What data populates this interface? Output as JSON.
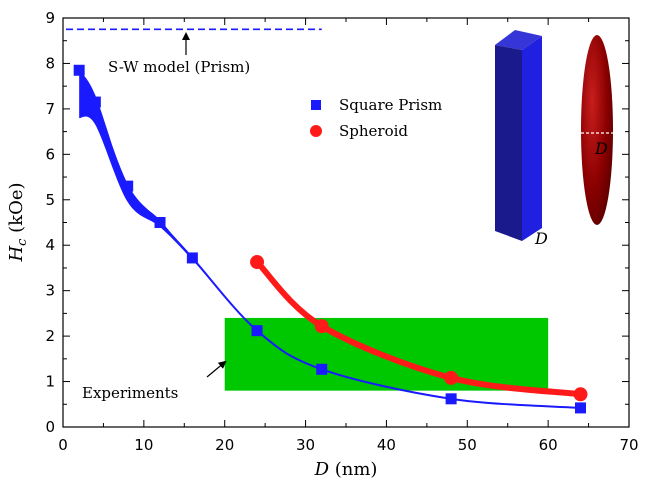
{
  "chart_data": {
    "type": "line",
    "xlabel": {
      "italic": "D",
      "rest": " (nm)"
    },
    "ylabel": {
      "italic": "H",
      "sub": "c",
      "rest": " (kOe)"
    },
    "xlim": [
      0,
      70
    ],
    "ylim": [
      0,
      9
    ],
    "xticks": [
      0,
      10,
      20,
      30,
      40,
      50,
      60,
      70
    ],
    "yticks": [
      0,
      1,
      2,
      3,
      4,
      5,
      6,
      7,
      8,
      9
    ],
    "grid": false,
    "legend": {
      "position": "top-center",
      "entries": [
        {
          "name": "Square Prism",
          "color": "#1a1aff",
          "marker": "square"
        },
        {
          "name": "Spheroid",
          "color": "#ff1a1a",
          "marker": "circle"
        }
      ]
    },
    "series": [
      {
        "name": "Square Prism",
        "color": "#1a1aff",
        "marker": "square",
        "x": [
          2,
          4,
          8,
          12,
          16,
          24,
          32,
          48,
          64
        ],
        "y": [
          7.85,
          7.15,
          5.3,
          4.5,
          3.72,
          2.12,
          1.27,
          0.62,
          0.42
        ],
        "band_upper": [
          7.85,
          7.3,
          5.3,
          4.55,
          3.72,
          2.12,
          1.27,
          0.62,
          0.42
        ],
        "band_lower": [
          6.8,
          6.65,
          4.95,
          4.4,
          3.68,
          2.12,
          1.27,
          0.62,
          0.42
        ]
      },
      {
        "name": "Spheroid",
        "color": "#ff1a1a",
        "marker": "circle",
        "x": [
          24,
          32,
          48,
          64
        ],
        "y": [
          3.63,
          2.22,
          1.08,
          0.72
        ]
      }
    ],
    "reference_line": {
      "y": 8.75,
      "x_range": [
        0,
        32
      ],
      "color": "#1a1aff",
      "style": "dashed"
    },
    "shaded_region": {
      "x_range": [
        20,
        60
      ],
      "y_range": [
        0.8,
        2.4
      ],
      "color": "#00c800"
    },
    "annotations": [
      {
        "text": "S-W model (Prism)",
        "arrow_to": [
          15,
          8.75
        ]
      },
      {
        "text": "Experiments",
        "arrow_to": [
          20,
          1.4
        ]
      }
    ],
    "inset_labels": {
      "prism": "D",
      "spheroid": "D"
    },
    "colors": {
      "prism_body": "#1a1a8c",
      "prism_side": "#2020e0",
      "spheroid": "#8b0000"
    }
  }
}
